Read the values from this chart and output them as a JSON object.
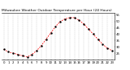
{
  "title": "Milwaukee Weather Outdoor Temperature per Hour (24 Hours)",
  "hours": [
    0,
    1,
    2,
    3,
    4,
    5,
    6,
    7,
    8,
    9,
    10,
    11,
    12,
    13,
    14,
    15,
    16,
    17,
    18,
    19,
    20,
    21,
    22,
    23
  ],
  "temps": [
    28,
    26,
    25,
    24,
    23,
    22,
    24,
    27,
    31,
    36,
    41,
    46,
    50,
    52,
    53,
    53,
    51,
    48,
    44,
    40,
    36,
    32,
    29,
    27
  ],
  "line_color": "#ff0000",
  "marker_color": "#000000",
  "bg_color": "#ffffff",
  "grid_color": "#888888",
  "title_color": "#000000",
  "ylim": [
    20,
    57
  ],
  "yticks": [
    25,
    30,
    35,
    40,
    45,
    50,
    55
  ],
  "title_fontsize": 3.2,
  "tick_fontsize": 2.8,
  "figsize": [
    1.6,
    0.87
  ],
  "dpi": 100
}
